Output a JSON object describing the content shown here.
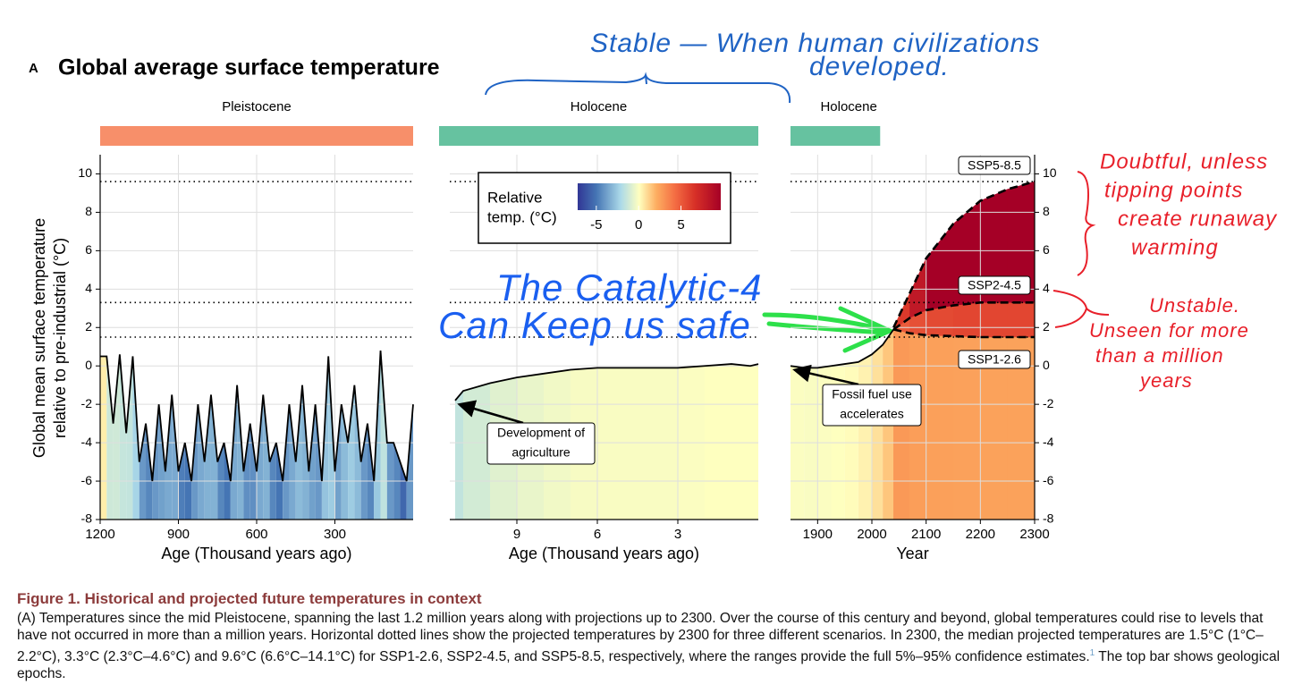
{
  "panel_label": "A",
  "title": "Global average surface temperature",
  "y_label": [
    "Global mean surface temperature",
    "relative to pre-industrial (°C)"
  ],
  "colorbar": {
    "title": [
      "Relative",
      "temp. (°C)"
    ],
    "ticks": [
      -5,
      0,
      5
    ],
    "lim": [
      -7.2,
      9.7
    ]
  },
  "chart_data": [
    {
      "type": "line",
      "epoch": "Pleistocene",
      "epoch_color": "#f78f6a",
      "xlabel": "Age (Thousand years ago)",
      "x": [
        1200,
        1175,
        1150,
        1125,
        1100,
        1075,
        1050,
        1025,
        1000,
        975,
        950,
        925,
        900,
        875,
        850,
        825,
        800,
        775,
        750,
        725,
        700,
        675,
        650,
        625,
        600,
        575,
        550,
        525,
        500,
        475,
        450,
        425,
        400,
        375,
        350,
        325,
        300,
        275,
        250,
        225,
        200,
        175,
        150,
        125,
        100,
        75,
        50,
        25,
        0
      ],
      "values": [
        0.5,
        0.5,
        -3,
        0.6,
        -3.5,
        0.5,
        -5,
        -3,
        -6,
        -2,
        -5.5,
        -1.5,
        -5.5,
        -4,
        -6,
        -2,
        -5,
        -1.5,
        -5,
        -4,
        -6,
        -1,
        -5.5,
        -3,
        -5.5,
        -1.5,
        -5,
        -4,
        -6,
        -2,
        -5,
        -1,
        -5.5,
        -2,
        -6,
        0.5,
        -5.5,
        -2,
        -4,
        -1,
        -5,
        -3,
        -6,
        0.8,
        -4,
        -4,
        -5,
        -6,
        -2
      ],
      "xlim": [
        1200,
        0
      ],
      "xticks": [
        1200,
        900,
        600,
        300
      ],
      "ylim": [
        -8,
        11
      ],
      "yticks": [
        -8,
        -6,
        -4,
        -2,
        0,
        2,
        4,
        6,
        8,
        10
      ],
      "yaxis_side": "left",
      "hlines": [
        1.5,
        3.3,
        9.6
      ],
      "grid": true,
      "line_color": "#000000"
    },
    {
      "type": "line",
      "epoch": "Holocene",
      "epoch_color": "#66c2a0",
      "xlabel": "Age (Thousand years ago)",
      "x": [
        11.3,
        11,
        10,
        9,
        8,
        7,
        6,
        5,
        4,
        3,
        2,
        1,
        0.3,
        0
      ],
      "values": [
        -1.8,
        -1.3,
        -0.9,
        -0.6,
        -0.4,
        -0.2,
        -0.1,
        -0.1,
        -0.1,
        -0.1,
        0,
        0.1,
        0,
        0.1
      ],
      "xlim": [
        11.5,
        0
      ],
      "xticks": [
        9,
        6,
        3
      ],
      "ylim": [
        -8,
        11
      ],
      "yticks": [
        -8,
        -6,
        -4,
        -2,
        0,
        2,
        4,
        6,
        8,
        10
      ],
      "yaxis_side": "none",
      "hlines": [
        1.5,
        3.3,
        9.6
      ],
      "grid": true,
      "line_color": "#000000",
      "annotation": [
        "Development of",
        "agriculture"
      ]
    },
    {
      "type": "line",
      "epoch": "Holocene",
      "epoch_color": "#66c2a0",
      "xlabel": "Year",
      "x": [
        1850,
        1875,
        1900,
        1925,
        1950,
        1975,
        2000,
        2020,
        2040
      ],
      "values": [
        0,
        -0.1,
        -0.1,
        0,
        0.1,
        0.2,
        0.6,
        1.1,
        1.9
      ],
      "series": [
        {
          "name": "SSP1-2.6",
          "color": "#000000",
          "x": [
            2040,
            2070,
            2100,
            2150,
            2200,
            2250,
            2300
          ],
          "values": [
            1.9,
            1.7,
            1.6,
            1.55,
            1.5,
            1.5,
            1.5
          ]
        },
        {
          "name": "SSP2-4.5",
          "color": "#000000",
          "x": [
            2040,
            2070,
            2100,
            2150,
            2200,
            2250,
            2300
          ],
          "values": [
            1.9,
            2.5,
            2.9,
            3.15,
            3.3,
            3.3,
            3.3
          ]
        },
        {
          "name": "SSP5-8.5",
          "color": "#000000",
          "x": [
            2040,
            2070,
            2100,
            2150,
            2200,
            2250,
            2300
          ],
          "values": [
            2.0,
            3.8,
            5.6,
            7.4,
            8.6,
            9.2,
            9.6
          ]
        }
      ],
      "xlim": [
        1850,
        2300
      ],
      "xticks": [
        1900,
        2000,
        2100,
        2200,
        2300
      ],
      "ylim": [
        -8,
        11
      ],
      "yticks": [
        -8,
        -6,
        -4,
        -2,
        0,
        2,
        4,
        6,
        8,
        10
      ],
      "yaxis_side": "right",
      "hlines": [
        1.5,
        3.3,
        9.6
      ],
      "grid": true,
      "line_color": "#000000",
      "annotation": [
        "Fossil fuel use",
        "accelerates"
      ]
    }
  ],
  "notes": [
    {
      "lines": [
        "Stable — When human civilizations",
        "developed."
      ],
      "color": "#1f63c4"
    },
    {
      "lines": [
        "The Catalytic-4",
        "Can Keep us safe"
      ],
      "color": "#1a5ff0"
    },
    {
      "lines": [
        "Doubtful, unless",
        "tipping points",
        "create runaway",
        "warming"
      ],
      "color": "#e8202a"
    },
    {
      "lines": [
        "Unstable.",
        "Unseen for more",
        "than a million",
        "years"
      ],
      "color": "#e8202a"
    }
  ],
  "caption": {
    "title": "Figure 1.  Historical and projected future temperatures in context",
    "text": "(A) Temperatures since the mid Pleistocene, spanning the last 1.2 million years along with projections up to 2300. Over the course of this century and beyond, global temperatures could rise to levels that have not occurred in more than a million years. Horizontal dotted lines show the projected temperatures by 2300 for three different scenarios. In 2300, the median projected temperatures are 1.5°C (1°C–2.2°C), 3.3°C (2.3°C–4.6°C) and 9.6°C (6.6°C–14.1°C) for SSP1-2.6, SSP2-4.5, and SSP5-8.5, respectively, where the ranges provide the full 5%–95% confidence estimates.",
    "ref": "1",
    "text_end": " The top bar shows geological epochs."
  }
}
